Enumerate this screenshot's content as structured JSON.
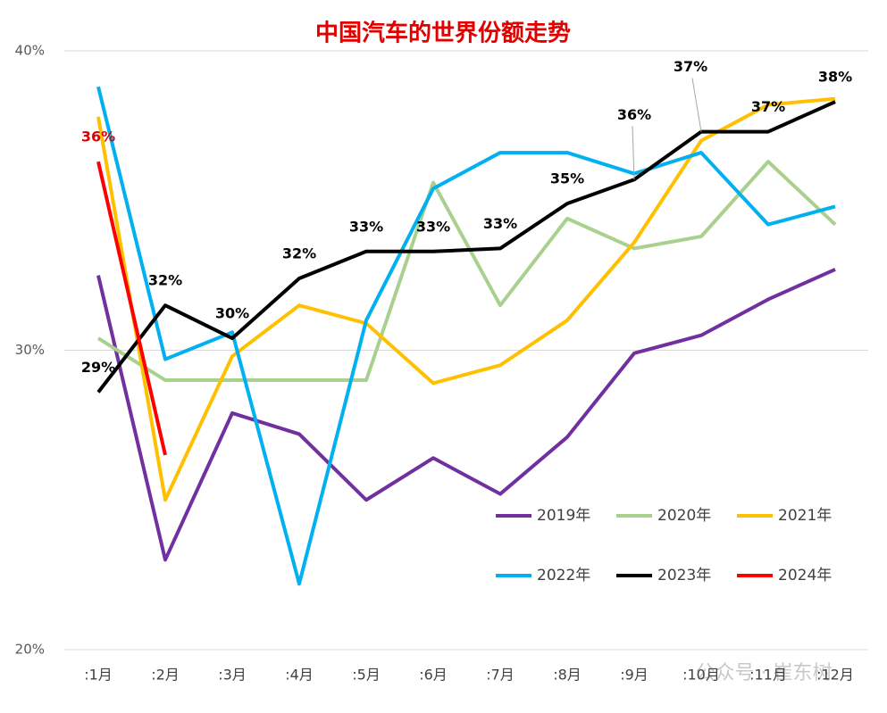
{
  "chart_data": {
    "type": "line",
    "title": "中国汽车的世界份额走势",
    "categories": [
      ":1月",
      ":2月",
      ":3月",
      ":4月",
      ":5月",
      ":6月",
      ":7月",
      ":8月",
      ":9月",
      ":10月",
      ":11月",
      ":12月"
    ],
    "ylim": [
      20,
      40
    ],
    "yticks": [
      {
        "value": 20,
        "label": "20%"
      },
      {
        "value": 30,
        "label": "30%"
      },
      {
        "value": 40,
        "label": "40%"
      }
    ],
    "grid": true,
    "series": [
      {
        "name": "2019年",
        "color": "#7030a0",
        "values": [
          32.5,
          23.0,
          27.9,
          27.2,
          25.0,
          26.4,
          25.2,
          27.1,
          29.9,
          30.5,
          31.7,
          32.7
        ]
      },
      {
        "name": "2020年",
        "color": "#a9d18e",
        "values": [
          30.4,
          29.0,
          29.0,
          29.0,
          29.0,
          35.6,
          31.5,
          34.4,
          33.4,
          33.8,
          36.3,
          34.2
        ]
      },
      {
        "name": "2021年",
        "color": "#ffc000",
        "values": [
          37.8,
          25.0,
          29.8,
          31.5,
          30.9,
          28.9,
          29.5,
          31.0,
          33.6,
          37.0,
          38.2,
          38.4
        ]
      },
      {
        "name": "2022年",
        "color": "#00b0f0",
        "values": [
          38.8,
          29.7,
          30.6,
          22.2,
          31.0,
          35.4,
          36.6,
          36.6,
          35.9,
          36.6,
          34.2,
          34.8
        ]
      },
      {
        "name": "2023年",
        "color": "#000000",
        "values": [
          28.6,
          31.5,
          30.4,
          32.4,
          33.3,
          33.3,
          33.4,
          34.9,
          35.7,
          37.3,
          37.3,
          38.3
        ],
        "value_labels": [
          "29%",
          "32%",
          "30%",
          "32%",
          "33%",
          "33%",
          "33%",
          "35%",
          "36%",
          "37%",
          "37%",
          "38%"
        ]
      },
      {
        "name": "2024年",
        "color": "#ff0000",
        "values": [
          36.3,
          26.5,
          null,
          null,
          null,
          null,
          null,
          null,
          null,
          null,
          null,
          null
        ],
        "value_labels": [
          "36%",
          null,
          null,
          null,
          null,
          null,
          null,
          null,
          null,
          null,
          null,
          null
        ]
      }
    ],
    "watermark": "公众号 · 崔东树"
  }
}
